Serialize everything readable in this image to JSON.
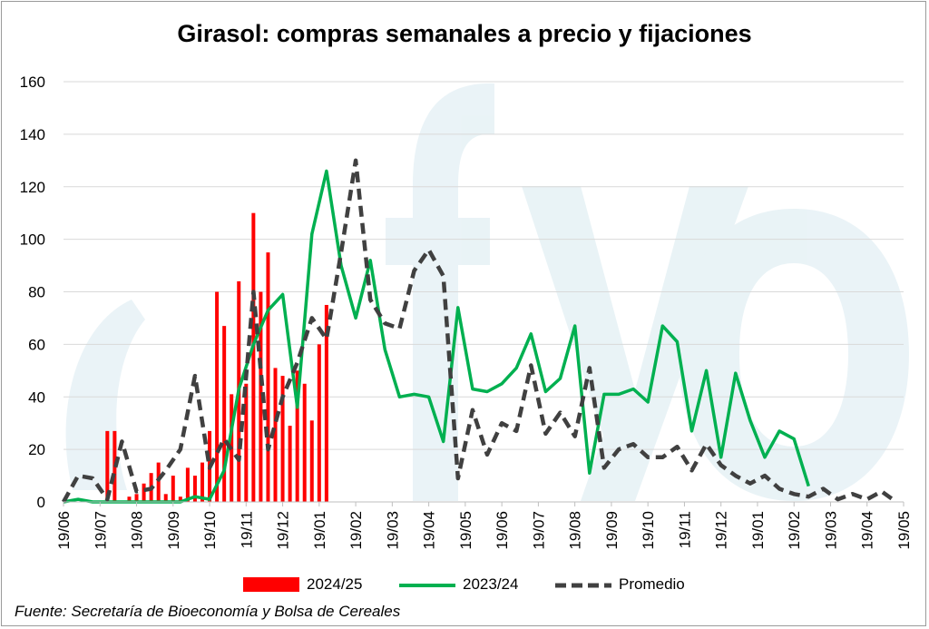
{
  "chart_data": {
    "type": "bar+line",
    "title": "Girasol: compras semanales a precio y fijaciones",
    "xlabel": "",
    "ylabel": "",
    "ylim": [
      0,
      160
    ],
    "yticks": [
      0,
      20,
      40,
      60,
      80,
      100,
      120,
      140,
      160
    ],
    "xticks": [
      "19/06",
      "19/07",
      "19/08",
      "19/09",
      "19/10",
      "19/11",
      "19/12",
      "19/01",
      "19/02",
      "19/03",
      "19/04",
      "19/05",
      "19/06",
      "19/07",
      "19/08",
      "19/09",
      "19/10",
      "19/11",
      "19/12",
      "19/01",
      "19/02",
      "19/03",
      "19/04",
      "19/05"
    ],
    "x_unit": "semanas (índice desde 19/06)",
    "grid": "horizontal",
    "legend_position": "bottom",
    "series": [
      {
        "name": "2024/25",
        "type": "bar",
        "color": "#ff0000",
        "x": [
          6,
          7,
          9,
          10,
          11,
          12,
          13,
          14,
          15,
          16,
          17,
          18,
          19,
          20,
          21,
          22,
          23,
          24,
          25,
          26,
          27,
          28,
          29,
          30,
          31,
          32,
          33,
          34,
          35,
          36
        ],
        "values": [
          27,
          27,
          2,
          3,
          7,
          11,
          15,
          3,
          10,
          2,
          13,
          10,
          15,
          27,
          80,
          67,
          41,
          84,
          45,
          110,
          80,
          95,
          51,
          48,
          29,
          50,
          45,
          31,
          60,
          75
        ]
      },
      {
        "name": "2023/24",
        "type": "line",
        "color": "#00b050",
        "x": [
          0,
          2,
          4,
          6,
          8,
          10,
          12,
          14,
          16,
          18,
          20,
          22,
          24,
          26,
          28,
          30,
          32,
          34,
          36,
          38,
          40,
          42,
          44,
          46,
          48,
          50,
          52,
          54,
          56,
          58,
          60,
          62,
          64,
          66,
          68,
          70,
          72,
          74,
          76,
          78,
          80,
          82,
          84,
          86,
          88,
          90,
          92,
          94,
          96,
          98,
          100,
          102
        ],
        "values": [
          0,
          1,
          0,
          0,
          0,
          0,
          0,
          0,
          0,
          2,
          1,
          12,
          43,
          60,
          73,
          79,
          36,
          102,
          126,
          90,
          70,
          92,
          58,
          40,
          41,
          40,
          23,
          74,
          43,
          42,
          45,
          51,
          64,
          42,
          47,
          67,
          11,
          41,
          41,
          43,
          38,
          67,
          61,
          27,
          50,
          17,
          49,
          31,
          17,
          27,
          24,
          6
        ]
      },
      {
        "name": "Promedio",
        "type": "line",
        "dash": "dashed",
        "color": "#404040",
        "x": [
          0,
          2,
          4,
          6,
          8,
          10,
          12,
          14,
          16,
          18,
          20,
          22,
          24,
          26,
          28,
          30,
          32,
          34,
          36,
          38,
          40,
          42,
          44,
          46,
          48,
          50,
          52,
          54,
          56,
          58,
          60,
          62,
          64,
          66,
          68,
          70,
          72,
          74,
          76,
          78,
          80,
          82,
          84,
          86,
          88,
          90,
          92,
          94,
          96,
          98,
          100,
          102,
          104,
          106,
          108,
          110,
          112,
          114
        ],
        "values": [
          0,
          10,
          9,
          1,
          23,
          4,
          5,
          12,
          20,
          48,
          13,
          24,
          16,
          80,
          20,
          40,
          53,
          70,
          62,
          95,
          130,
          77,
          68,
          66,
          88,
          96,
          86,
          9,
          35,
          18,
          30,
          27,
          52,
          26,
          34,
          25,
          51,
          13,
          20,
          22,
          17,
          17,
          21,
          12,
          22,
          14,
          10,
          7,
          10,
          5,
          3,
          2,
          5,
          1,
          3,
          1,
          4,
          0
        ]
      }
    ]
  },
  "legend": {
    "items": [
      "2024/25",
      "2023/24",
      "Promedio"
    ]
  },
  "source": "Fuente: Secretaría de Bioeconomía y Bolsa de Cereales",
  "watermark": "cfyo"
}
